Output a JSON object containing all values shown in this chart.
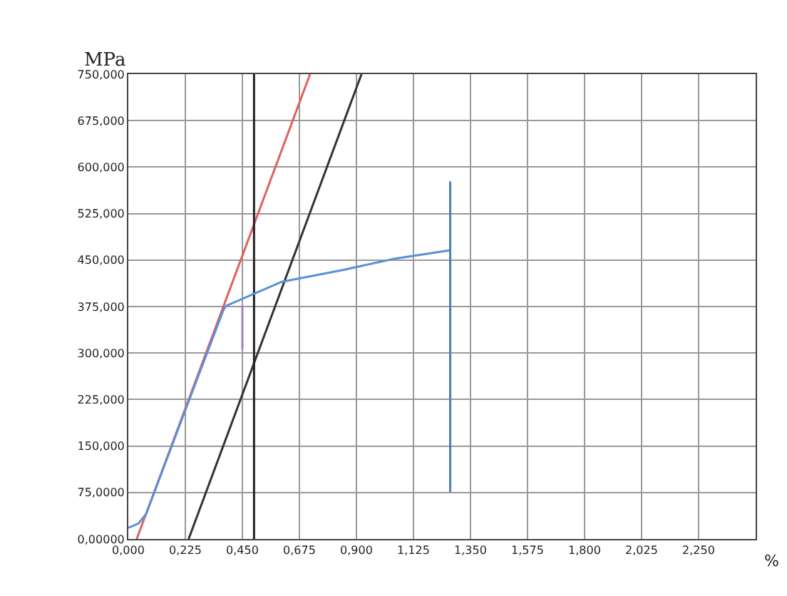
{
  "chart_data": {
    "type": "line",
    "xlabel": "%",
    "ylabel": "MPa",
    "xlim": [
      0,
      2.475
    ],
    "ylim": [
      0,
      750
    ],
    "xticks": [
      {
        "value": 0,
        "label": "0,000"
      },
      {
        "value": 0.225,
        "label": "0,225"
      },
      {
        "value": 0.45,
        "label": "0,450"
      },
      {
        "value": 0.675,
        "label": "0,675"
      },
      {
        "value": 0.9,
        "label": "0,900"
      },
      {
        "value": 1.125,
        "label": "1,125"
      },
      {
        "value": 1.35,
        "label": "1,350"
      },
      {
        "value": 1.575,
        "label": "1,575"
      },
      {
        "value": 1.8,
        "label": "1,800"
      },
      {
        "value": 2.025,
        "label": "2,025"
      },
      {
        "value": 2.25,
        "label": "2,250"
      }
    ],
    "yticks": [
      {
        "value": 0,
        "label": "0,00000"
      },
      {
        "value": 75,
        "label": "75,0000"
      },
      {
        "value": 150,
        "label": "150,000"
      },
      {
        "value": 225,
        "label": "225,000"
      },
      {
        "value": 300,
        "label": "300,000"
      },
      {
        "value": 375,
        "label": "375,000"
      },
      {
        "value": 450,
        "label": "450,000"
      },
      {
        "value": 525,
        "label": "525,000"
      },
      {
        "value": 600,
        "label": "600,000"
      },
      {
        "value": 675,
        "label": "675,000"
      },
      {
        "value": 750,
        "label": "750,000"
      }
    ],
    "grid": true,
    "marker": "none",
    "line_style": "solid",
    "series": [
      {
        "color": "#e06060",
        "x": [
          0.033,
          0.717
        ],
        "values": [
          0,
          750
        ]
      },
      {
        "color": "#333333",
        "x": [
          0.238,
          0.92
        ],
        "values": [
          0,
          750
        ]
      },
      {
        "color": "#222222",
        "x": [
          0.496,
          0.496
        ],
        "values": [
          0,
          750
        ]
      },
      {
        "color": "#a080c0",
        "x": [
          0.45,
          0.45
        ],
        "values": [
          306,
          376
        ]
      },
      {
        "color": "#5b8fd6",
        "x": [
          0,
          0.04,
          0.07,
          0.238,
          0.376,
          0.385,
          0.606,
          0.846,
          1.049,
          1.27
        ],
        "values": [
          18,
          25,
          40,
          222,
          370,
          376,
          415,
          434,
          452,
          466
        ]
      },
      {
        "color": "#4a7cc4",
        "x": [
          1.27,
          1.27
        ],
        "values": [
          76,
          577
        ]
      }
    ]
  }
}
